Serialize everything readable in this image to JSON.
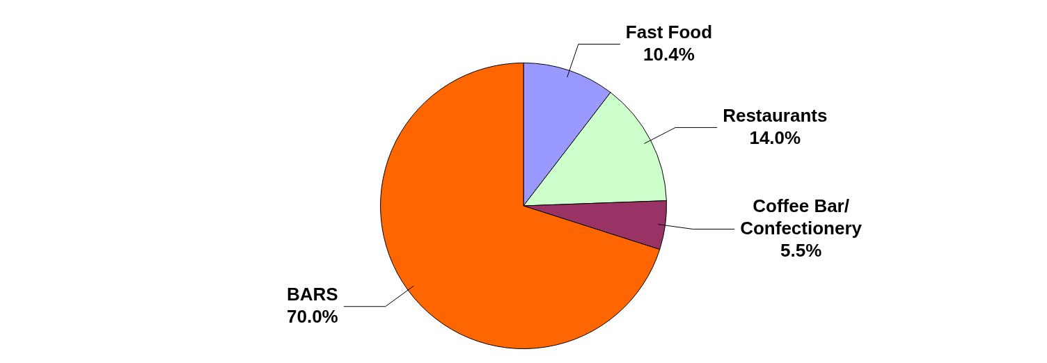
{
  "chart_data": {
    "type": "pie",
    "categories": [
      "Fast Food",
      "Restaurants",
      "Coffee Bar/ Confectionery",
      "BARS"
    ],
    "values": [
      10.4,
      14.0,
      5.5,
      70.0
    ],
    "colors": [
      "#9999ff",
      "#ccffcc",
      "#993366",
      "#ff6600"
    ],
    "value_labels": [
      "10.4%",
      "14.0%",
      "5.5%",
      "70.0%"
    ],
    "legend": false
  }
}
